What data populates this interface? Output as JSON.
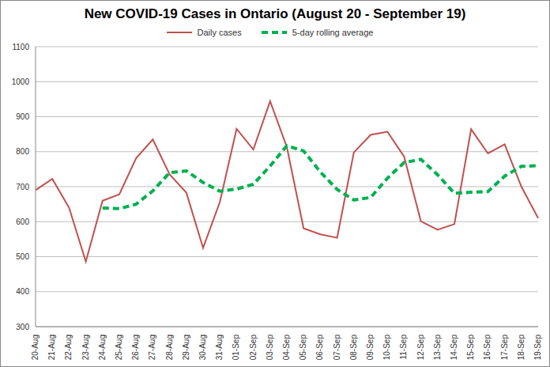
{
  "chart_data": {
    "type": "line",
    "title": "New COVID-19 Cases in Ontario (August 20 - September 19)",
    "categories": [
      "20-Aug",
      "21-Aug",
      "22-Aug",
      "23-Aug",
      "24-Aug",
      "25-Aug",
      "26-Aug",
      "27-Aug",
      "28-Aug",
      "29-Aug",
      "30-Aug",
      "31-Aug",
      "01-Sep",
      "02-Sep",
      "03-Sep",
      "04-Sep",
      "05-Sep",
      "06-Sep",
      "07-Sep",
      "08-Sep",
      "09-Sep",
      "10-Sep",
      "11-Sep",
      "12-Sep",
      "13-Sep",
      "14-Sep",
      "15-Sep",
      "16-Sep",
      "17-Sep",
      "18-Sep",
      "19-Sep"
    ],
    "series": [
      {
        "name": "Daily cases",
        "color": "#c0504d",
        "line_style": "solid",
        "marker": "none",
        "values": [
          690,
          722,
          640,
          486,
          660,
          678,
          781,
          835,
          735,
          683,
          525,
          656,
          865,
          806,
          944,
          813,
          581,
          564,
          554,
          798,
          848,
          857,
          786,
          601,
          577,
          593,
          864,
          795,
          821,
          700,
          610
        ]
      },
      {
        "name": "5-day rolling average",
        "color": "#00b050",
        "line_style": "dashed",
        "marker": "none",
        "values": [
          null,
          null,
          null,
          null,
          639,
          637,
          650,
          688,
          740,
          745,
          712,
          687,
          693,
          707,
          759,
          817,
          802,
          742,
          692,
          662,
          669,
          724,
          769,
          778,
          734,
          681,
          684,
          686,
          730,
          758,
          760
        ]
      }
    ],
    "ylim": [
      300,
      1100
    ],
    "yticks": [
      300,
      400,
      500,
      600,
      700,
      800,
      900,
      1000,
      1100
    ],
    "grid": true,
    "legend": "top"
  }
}
